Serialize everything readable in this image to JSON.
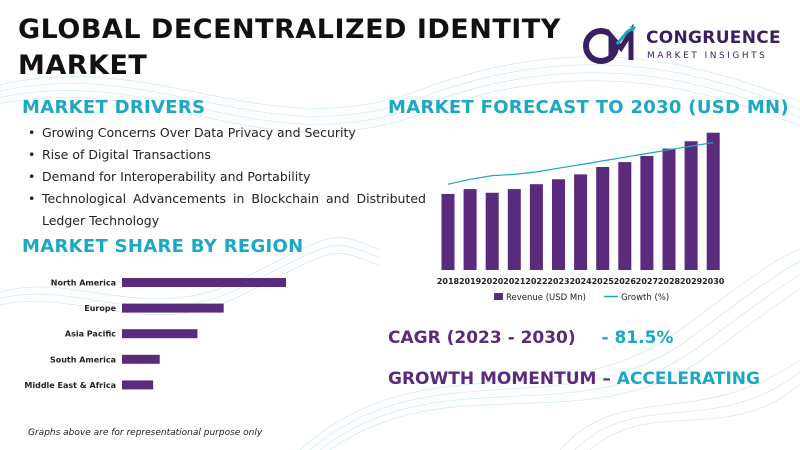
{
  "title": "GLOBAL DECENTRALIZED IDENTITY MARKET",
  "logo": {
    "name": "CONGRUENCE",
    "subtitle": "MARKET INSIGHTS"
  },
  "drivers": {
    "heading": "MARKET DRIVERS",
    "items": [
      "Growing Concerns Over Data Privacy and Security",
      "Rise of Digital Transactions",
      "Demand for Interoperability and Portability",
      "Technological Advancements in Blockchain and Distributed Ledger Technology"
    ]
  },
  "region": {
    "heading": "MARKET SHARE BY REGION"
  },
  "forecast": {
    "heading": "MARKET FORECAST TO 2030 (USD MN)"
  },
  "cagr": {
    "label": "CAGR (2023 - 2030)",
    "value": "- 81.5%"
  },
  "momentum": {
    "label": "GROWTH MOMENTUM",
    "value": "ACCELERATING",
    "separator": "–"
  },
  "note": "Graphs above are for representational purpose only",
  "colors": {
    "purple": "#5a2a7c",
    "teal": "#1aa8c4",
    "dark": "#3a1f63"
  },
  "chart_data": [
    {
      "type": "bar",
      "orientation": "horizontal",
      "title": "",
      "categories": [
        "North America",
        "Europe",
        "Asia Pacific",
        "South America",
        "Middle East & Africa"
      ],
      "values": [
        100,
        62,
        46,
        23,
        19
      ],
      "xlim": [
        0,
        100
      ],
      "grid": false,
      "color": "#5a2a7c"
    },
    {
      "type": "bar",
      "title": "",
      "categories": [
        "2018",
        "2019",
        "2020",
        "2021",
        "2022",
        "2023",
        "2024",
        "2025",
        "2026",
        "2027",
        "2028",
        "2029",
        "2030"
      ],
      "series": [
        {
          "name": "Revenue (USD Mn)",
          "type": "bar",
          "color": "#5a2a7c",
          "values": [
            62,
            66,
            63,
            66,
            70,
            74,
            78,
            84,
            88,
            93,
            99,
            105,
            112
          ]
        },
        {
          "name": "Growth (%)",
          "type": "line",
          "color": "#1aa8c4",
          "values": [
            70,
            74,
            77,
            78,
            80,
            83,
            86,
            89,
            92,
            95,
            98,
            101,
            104
          ]
        }
      ],
      "ylim": [
        0,
        115
      ],
      "legend": "bottom",
      "grid": false
    }
  ]
}
